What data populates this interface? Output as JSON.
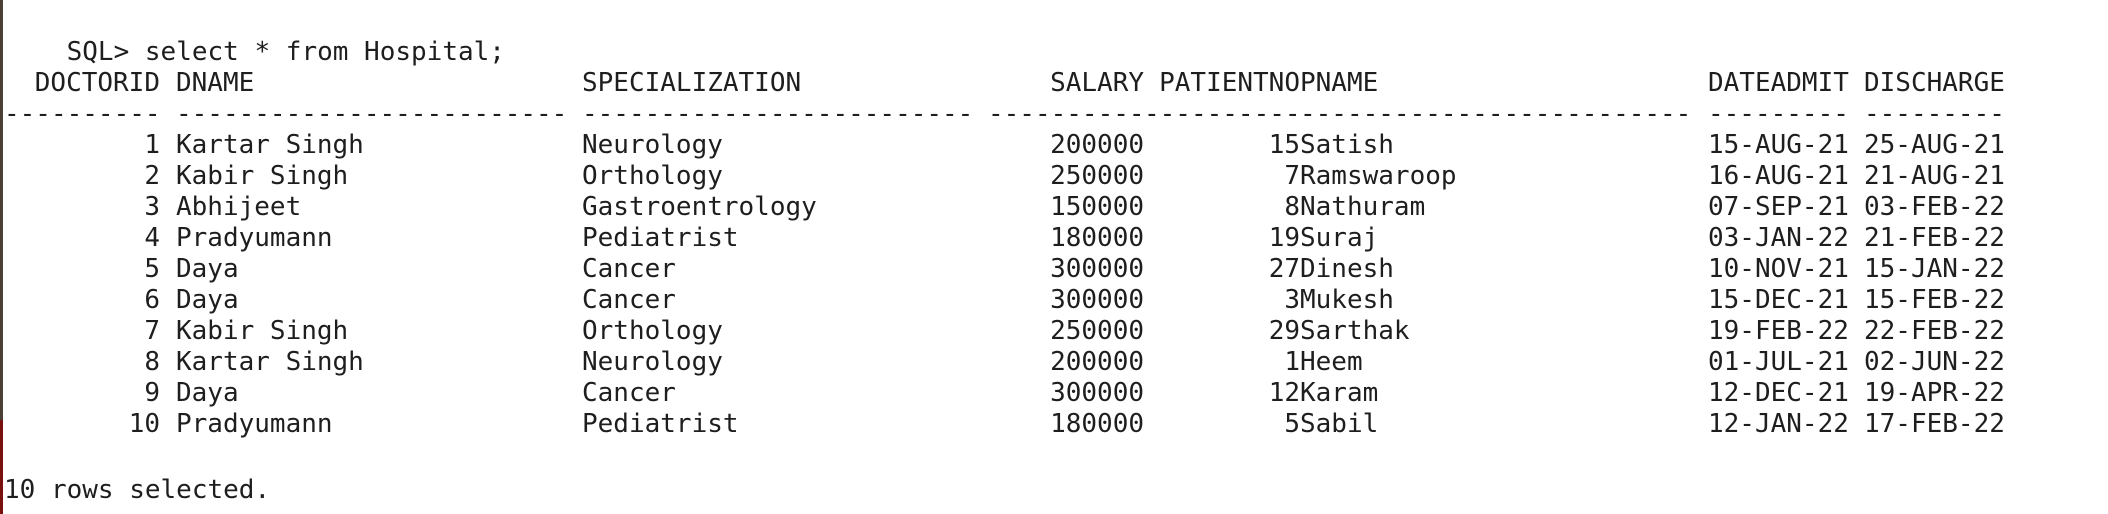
{
  "terminal": {
    "prompt": "SQL> ",
    "command": "select * from Hospital;",
    "footer": "10 rows selected."
  },
  "table": {
    "columns": [
      {
        "key": "doctorid",
        "header": "DOCTORID",
        "dash": "----------",
        "align": "right"
      },
      {
        "key": "dname",
        "header": "DNAME",
        "dash": "-------------------------",
        "align": "left"
      },
      {
        "key": "specialization",
        "header": "SPECIALIZATION",
        "dash": "-------------------------",
        "align": "left"
      },
      {
        "key": "salary",
        "header": "SALARY",
        "dash": "----------",
        "align": "right"
      },
      {
        "key": "patientno",
        "header": "PATIENTNO",
        "dash": "----------",
        "align": "right"
      },
      {
        "key": "pname",
        "header": "PNAME",
        "dash": "-------------------------",
        "align": "left"
      },
      {
        "key": "dateadmit",
        "header": "DATEADMIT",
        "dash": "---------",
        "align": "left"
      },
      {
        "key": "discharge",
        "header": "DISCHARGE",
        "dash": "---------",
        "align": "left"
      }
    ],
    "rows": [
      {
        "doctorid": "1",
        "dname": "Kartar Singh",
        "specialization": "Neurology",
        "salary": "200000",
        "patientno": "15",
        "pname": "Satish",
        "dateadmit": "15-AUG-21",
        "discharge": "25-AUG-21"
      },
      {
        "doctorid": "2",
        "dname": "Kabir Singh",
        "specialization": "Orthology",
        "salary": "250000",
        "patientno": "7",
        "pname": "Ramswaroop",
        "dateadmit": "16-AUG-21",
        "discharge": "21-AUG-21"
      },
      {
        "doctorid": "3",
        "dname": "Abhijeet",
        "specialization": "Gastroentrology",
        "salary": "150000",
        "patientno": "8",
        "pname": "Nathuram",
        "dateadmit": "07-SEP-21",
        "discharge": "03-FEB-22"
      },
      {
        "doctorid": "4",
        "dname": "Pradyumann",
        "specialization": "Pediatrist",
        "salary": "180000",
        "patientno": "19",
        "pname": "Suraj",
        "dateadmit": "03-JAN-22",
        "discharge": "21-FEB-22"
      },
      {
        "doctorid": "5",
        "dname": "Daya",
        "specialization": "Cancer",
        "salary": "300000",
        "patientno": "27",
        "pname": "Dinesh",
        "dateadmit": "10-NOV-21",
        "discharge": "15-JAN-22"
      },
      {
        "doctorid": "6",
        "dname": "Daya",
        "specialization": "Cancer",
        "salary": "300000",
        "patientno": "3",
        "pname": "Mukesh",
        "dateadmit": "15-DEC-21",
        "discharge": "15-FEB-22"
      },
      {
        "doctorid": "7",
        "dname": "Kabir Singh",
        "specialization": "Orthology",
        "salary": "250000",
        "patientno": "29",
        "pname": "Sarthak",
        "dateadmit": "19-FEB-22",
        "discharge": "22-FEB-22"
      },
      {
        "doctorid": "8",
        "dname": "Kartar Singh",
        "specialization": "Neurology",
        "salary": "200000",
        "patientno": "1",
        "pname": "Heem",
        "dateadmit": "01-JUL-21",
        "discharge": "02-JUN-22"
      },
      {
        "doctorid": "9",
        "dname": "Daya",
        "specialization": "Cancer",
        "salary": "300000",
        "patientno": "12",
        "pname": "Karam",
        "dateadmit": "12-DEC-21",
        "discharge": "19-APR-22"
      },
      {
        "doctorid": "10",
        "dname": "Pradyumann",
        "specialization": "Pediatrist",
        "salary": "180000",
        "patientno": "5",
        "pname": "Sabil",
        "dateadmit": "12-JAN-22",
        "discharge": "17-FEB-22"
      }
    ]
  }
}
